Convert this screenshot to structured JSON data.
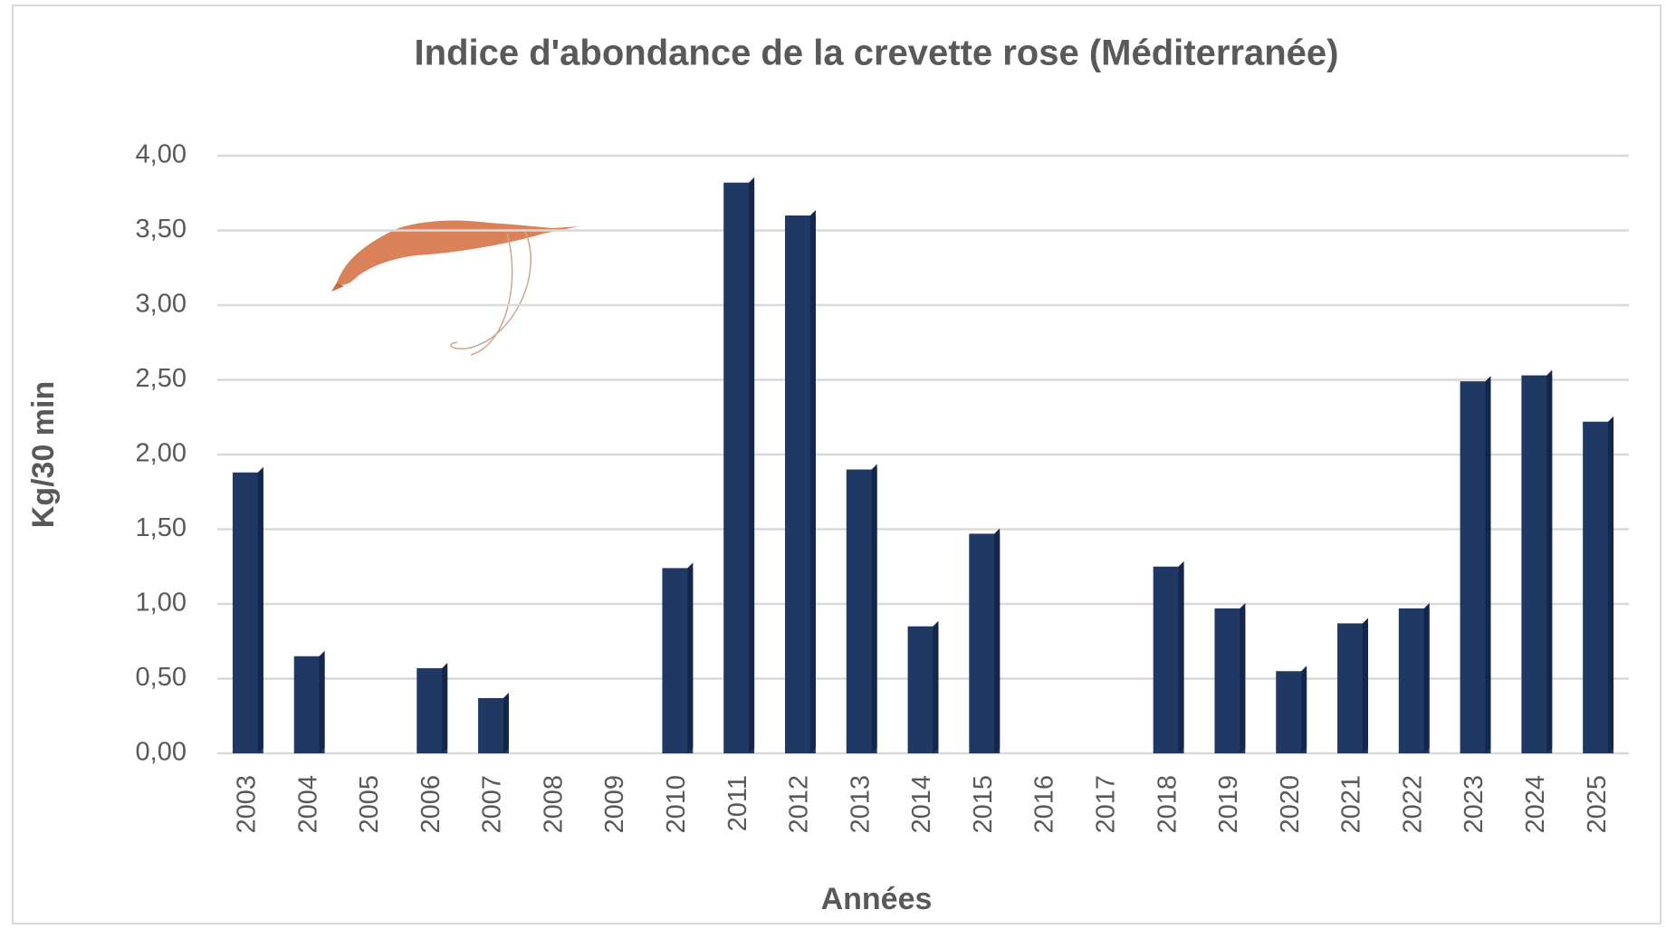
{
  "chart_data": {
    "type": "bar",
    "title": "Indice d'abondance  de la crevette rose (Méditerranée)",
    "x_label": "Années",
    "y_label": "Kg/30 min",
    "categories": [
      "2003",
      "2004",
      "2005",
      "2006",
      "2007",
      "2008",
      "2009",
      "2010",
      "2011",
      "2012",
      "2013",
      "2014",
      "2015",
      "2016",
      "2017",
      "2018",
      "2019",
      "2020",
      "2021",
      "2022",
      "2023",
      "2024",
      "2025"
    ],
    "values": [
      1.88,
      0.65,
      null,
      0.57,
      0.37,
      null,
      null,
      1.24,
      3.82,
      3.6,
      1.9,
      0.85,
      1.47,
      null,
      null,
      1.25,
      0.97,
      0.55,
      0.87,
      0.97,
      2.49,
      2.53,
      2.22
    ],
    "color": "#1f3864",
    "ylim": [
      0,
      4
    ],
    "yticks": [
      {
        "value": 0,
        "label": "0,00"
      },
      {
        "value": 0.5,
        "label": "0,50"
      },
      {
        "value": 1,
        "label": "1,00"
      },
      {
        "value": 1.5,
        "label": "1,50"
      },
      {
        "value": 2,
        "label": "2,00"
      },
      {
        "value": 2.5,
        "label": "2,50"
      },
      {
        "value": 3,
        "label": "3,00"
      },
      {
        "value": 3.5,
        "label": "3,50"
      },
      {
        "value": 4,
        "label": "4,00"
      }
    ],
    "grid": true
  }
}
